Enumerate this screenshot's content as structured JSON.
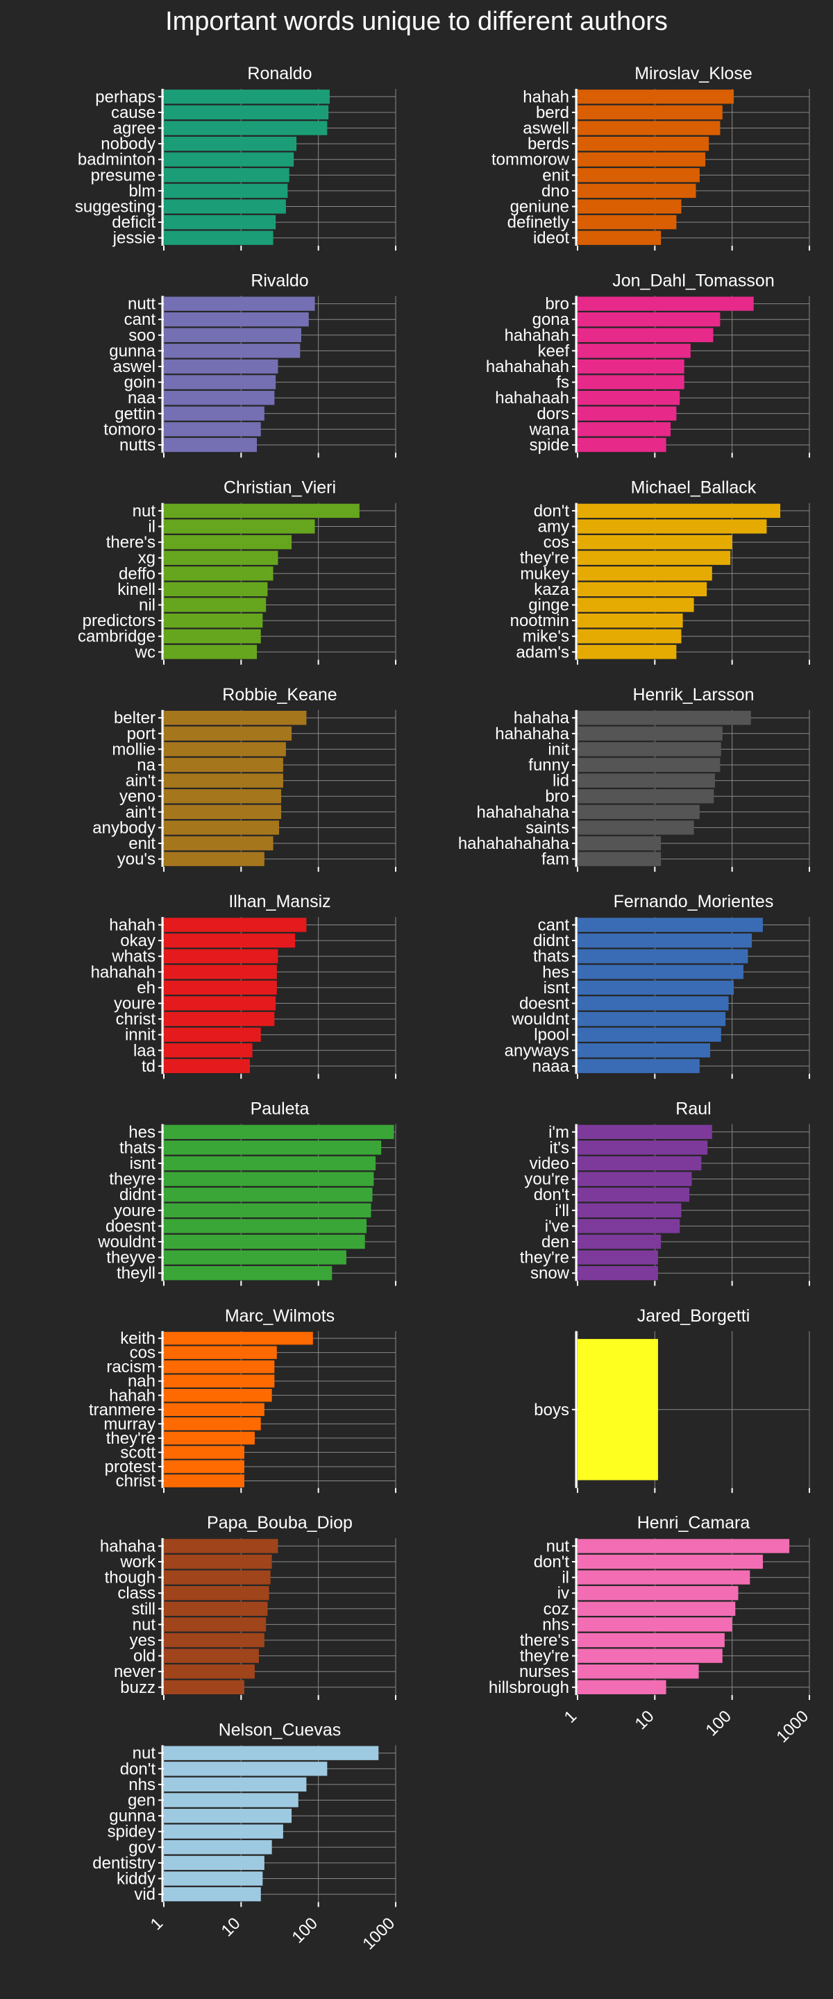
{
  "title": "Important words unique to different authors",
  "x_ticks": [
    "1",
    "10",
    "100",
    "1000"
  ],
  "chart_data": [
    {
      "type": "bar",
      "title": "Ronaldo",
      "color": "#1b9e77",
      "scale": "log",
      "xlim": [
        1,
        1000
      ],
      "categories": [
        "perhaps",
        "cause",
        "agree",
        "nobody",
        "badminton",
        "presume",
        "blm",
        "suggesting",
        "deficit",
        "jessie"
      ],
      "values": [
        140,
        135,
        130,
        52,
        48,
        42,
        40,
        38,
        28,
        26
      ]
    },
    {
      "type": "bar",
      "title": "Miroslav_Klose",
      "color": "#d95f02",
      "scale": "log",
      "xlim": [
        1,
        1000
      ],
      "categories": [
        "hahah",
        "berd",
        "aswell",
        "berds",
        "tommorow",
        "enit",
        "dno",
        "geniune",
        "definetly",
        "ideot"
      ],
      "values": [
        105,
        75,
        70,
        50,
        45,
        38,
        34,
        22,
        19,
        12
      ]
    },
    {
      "type": "bar",
      "title": "Rivaldo",
      "color": "#7570b3",
      "scale": "log",
      "xlim": [
        1,
        1000
      ],
      "categories": [
        "nutt",
        "cant",
        "soo",
        "gunna",
        "aswel",
        "goin",
        "naa",
        "gettin",
        "tomoro",
        "nutts"
      ],
      "values": [
        90,
        75,
        60,
        58,
        30,
        28,
        27,
        20,
        18,
        16
      ]
    },
    {
      "type": "bar",
      "title": "Jon_Dahl_Tomasson",
      "color": "#e7298a",
      "scale": "log",
      "xlim": [
        1,
        1000
      ],
      "categories": [
        "bro",
        "gona",
        "hahahah",
        "keef",
        "hahahahah",
        "fs",
        "hahahaah",
        "dors",
        "wana",
        "spide"
      ],
      "values": [
        190,
        70,
        57,
        29,
        24,
        24,
        21,
        19,
        16,
        14
      ]
    },
    {
      "type": "bar",
      "title": "Christian_Vieri",
      "color": "#66a61e",
      "scale": "log",
      "xlim": [
        1,
        1000
      ],
      "categories": [
        "nut",
        "il",
        "there's",
        "xg",
        "deffo",
        "kinell",
        "nil",
        "predictors",
        "cambridge",
        "wc"
      ],
      "values": [
        340,
        90,
        45,
        30,
        26,
        22,
        21,
        19,
        18,
        16
      ]
    },
    {
      "type": "bar",
      "title": "Michael_Ballack",
      "color": "#e6ab02",
      "scale": "log",
      "xlim": [
        1,
        1000
      ],
      "categories": [
        "don't",
        "amy",
        "cos",
        "they're",
        "mukey",
        "kaza",
        "ginge",
        "nootmin",
        "mike's",
        "adam's"
      ],
      "values": [
        420,
        280,
        100,
        95,
        55,
        47,
        32,
        23,
        22,
        19
      ]
    },
    {
      "type": "bar",
      "title": "Robbie_Keane",
      "color": "#a6761d",
      "scale": "log",
      "xlim": [
        1,
        1000
      ],
      "categories": [
        "belter",
        "port",
        "mollie",
        "na",
        "ain't",
        "yeno",
        "ain't",
        "anybody",
        "enit",
        "you's"
      ],
      "values": [
        70,
        45,
        38,
        35,
        35,
        33,
        33,
        31,
        26,
        20
      ]
    },
    {
      "type": "bar",
      "title": "Henrik_Larsson",
      "color": "#555555",
      "scale": "log",
      "xlim": [
        1,
        1000
      ],
      "categories": [
        "hahaha",
        "hahahaha",
        "init",
        "funny",
        "lid",
        "bro",
        "hahahahaha",
        "saints",
        "hahahahahaha",
        "fam"
      ],
      "values": [
        175,
        75,
        72,
        70,
        60,
        58,
        38,
        32,
        12,
        12
      ]
    },
    {
      "type": "bar",
      "title": "Ilhan_Mansiz",
      "color": "#e41a1c",
      "scale": "log",
      "xlim": [
        1,
        1000
      ],
      "categories": [
        "hahah",
        "okay",
        "whats",
        "hahahah",
        "eh",
        "youre",
        "christ",
        "innit",
        "laa",
        "td"
      ],
      "values": [
        70,
        50,
        30,
        29,
        29,
        28,
        27,
        18,
        14,
        13
      ]
    },
    {
      "type": "bar",
      "title": "Fernando_Morientes",
      "color": "#3a6cb5",
      "scale": "log",
      "xlim": [
        1,
        1000
      ],
      "categories": [
        "cant",
        "didnt",
        "thats",
        "hes",
        "isnt",
        "doesnt",
        "wouldnt",
        "lpool",
        "anyways",
        "naaa"
      ],
      "values": [
        250,
        180,
        160,
        140,
        105,
        90,
        82,
        72,
        52,
        38
      ]
    },
    {
      "type": "bar",
      "title": "Pauleta",
      "color": "#3aa637",
      "scale": "log",
      "xlim": [
        1,
        1000
      ],
      "categories": [
        "hes",
        "thats",
        "isnt",
        "theyre",
        "didnt",
        "youre",
        "doesnt",
        "wouldnt",
        "theyve",
        "theyll"
      ],
      "values": [
        950,
        650,
        550,
        520,
        500,
        480,
        420,
        400,
        230,
        150
      ]
    },
    {
      "type": "bar",
      "title": "Raul",
      "color": "#7d3a9b",
      "scale": "log",
      "xlim": [
        1,
        1000
      ],
      "categories": [
        "i'm",
        "it's",
        "video",
        "you're",
        "don't",
        "i'll",
        "i've",
        "den",
        "they're",
        "snow"
      ],
      "values": [
        55,
        48,
        40,
        30,
        28,
        22,
        21,
        12,
        11,
        11
      ]
    },
    {
      "type": "bar",
      "title": "Marc_Wilmots",
      "color": "#ff6a00",
      "scale": "log",
      "xlim": [
        1,
        1000
      ],
      "categories": [
        "keith",
        "cos",
        "racism",
        "nah",
        "hahah",
        "tranmere",
        "murray",
        "they're",
        "scott",
        "protest",
        "christ"
      ],
      "values": [
        85,
        29,
        27,
        27,
        25,
        20,
        18,
        15,
        11,
        11,
        11
      ]
    },
    {
      "type": "bar",
      "title": "Jared_Borgetti",
      "color": "#ffff1f",
      "scale": "log",
      "xlim": [
        1,
        1000
      ],
      "categories": [
        "boys"
      ],
      "values": [
        11
      ]
    },
    {
      "type": "bar",
      "title": "Papa_Bouba_Diop",
      "color": "#a0441b",
      "scale": "log",
      "xlim": [
        1,
        1000
      ],
      "categories": [
        "hahaha",
        "work",
        "though",
        "class",
        "still",
        "nut",
        "yes",
        "old",
        "never",
        "buzz"
      ],
      "values": [
        30,
        25,
        24,
        23,
        22,
        21,
        20,
        17,
        15,
        11
      ]
    },
    {
      "type": "bar",
      "title": "Henri_Camara",
      "color": "#f26db3",
      "scale": "log",
      "xlim": [
        1,
        1000
      ],
      "categories": [
        "nut",
        "don't",
        "il",
        "iv",
        "coz",
        "nhs",
        "there's",
        "they're",
        "nurses",
        "hillsbrough"
      ],
      "values": [
        550,
        250,
        170,
        120,
        110,
        100,
        80,
        75,
        37,
        14
      ]
    },
    {
      "type": "bar",
      "title": "Nelson_Cuevas",
      "color": "#9ecae1",
      "scale": "log",
      "xlim": [
        1,
        1000
      ],
      "categories": [
        "nut",
        "don't",
        "nhs",
        "gen",
        "gunna",
        "spidey",
        "gov",
        "dentistry",
        "kiddy",
        "vid"
      ],
      "values": [
        600,
        130,
        70,
        55,
        45,
        35,
        25,
        20,
        19,
        18
      ]
    }
  ]
}
